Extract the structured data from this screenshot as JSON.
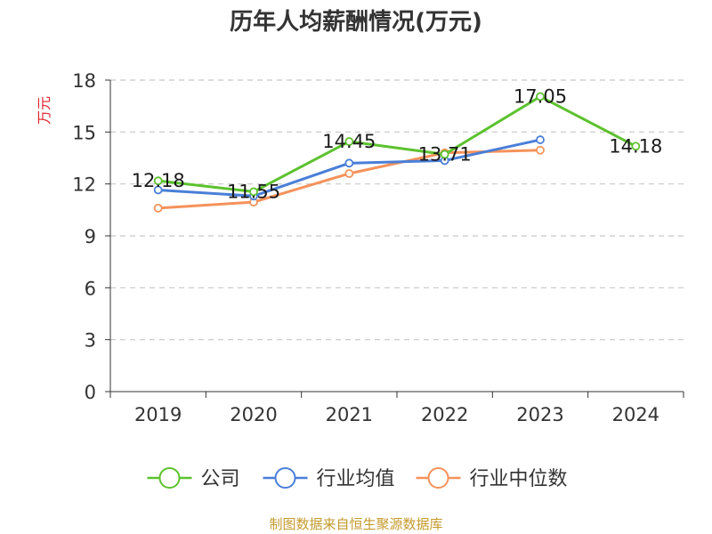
{
  "chart_data": {
    "type": "line",
    "title": "历年人均薪酬情况(万元)",
    "ylabel": "万元",
    "xlabel": "",
    "categories": [
      "2019",
      "2020",
      "2021",
      "2022",
      "2023",
      "2024"
    ],
    "ylim": [
      0,
      18
    ],
    "yticks": [
      0,
      3,
      6,
      9,
      12,
      15,
      18
    ],
    "grid": "horizontal dashed",
    "legend_position": "bottom",
    "series": [
      {
        "name": "公司",
        "color": "#5cc22e",
        "values": [
          12.18,
          11.55,
          14.45,
          13.71,
          17.05,
          14.18
        ],
        "labels": [
          "12.18",
          "11.55",
          "14.45",
          "13.71",
          "17.05",
          "14.18"
        ]
      },
      {
        "name": "行业均值",
        "color": "#4a7fd8",
        "values": [
          11.65,
          11.3,
          13.2,
          13.35,
          14.55,
          null
        ],
        "labels": []
      },
      {
        "name": "行业中位数",
        "color": "#f5925a",
        "values": [
          10.6,
          10.95,
          12.6,
          13.8,
          13.95,
          null
        ],
        "labels": []
      }
    ]
  },
  "colors": {
    "title": "#333333",
    "ylabel": "#e0242b",
    "source": "#c49a2c",
    "axis": "#333333",
    "grid": "#c8c8c8"
  },
  "source": "制图数据来自恒生聚源数据库"
}
